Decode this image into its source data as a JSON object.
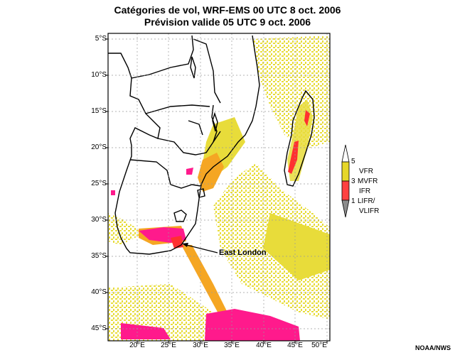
{
  "title": {
    "line1": "Catégories de vol, WRF-EMS 00 UTC 8 oct. 2006",
    "line2": "Prévision valide 05 UTC 9 oct. 2006"
  },
  "axes": {
    "latitude_labels": [
      "5°S",
      "10°S",
      "15°S",
      "20°S",
      "25°S",
      "30°S",
      "35°S",
      "40°S",
      "45°S"
    ],
    "longitude_labels": [
      "20°E",
      "25°E",
      "30°E",
      "35°E",
      "40°E",
      "45°E",
      "50°E"
    ]
  },
  "legend": {
    "colors": {
      "vfr": "#e6d72a",
      "mvfr": "#ff4040",
      "ifr": "#ff4040",
      "lifr": "#8c8c8c"
    },
    "labels": {
      "tick_5": "5",
      "vfr": "VFR",
      "tick_3": "3",
      "mvfr": "MVFR",
      "ifr": "IFR",
      "tick_1": "1",
      "lifr": "LIFR/",
      "vlifr": "VLIFR"
    }
  },
  "annotation": "East London",
  "credit": "NOAA/NWS",
  "palette": {
    "yellow": "#e8dc3a",
    "orange": "#f5a623",
    "red": "#ff3030",
    "magenta": "#ff1a8c",
    "border": "#000000"
  }
}
